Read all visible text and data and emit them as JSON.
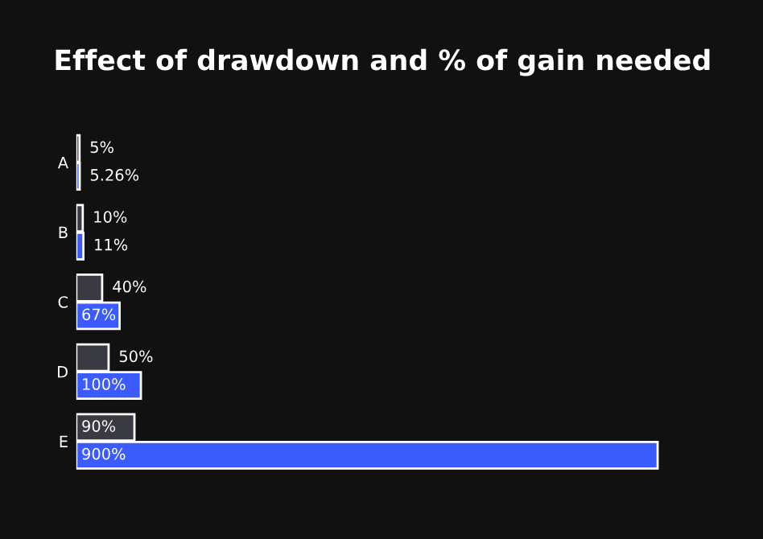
{
  "chart_data": {
    "type": "bar",
    "orientation": "horizontal",
    "title": "Effect of drawdown and % of gain needed",
    "categories": [
      "A",
      "B",
      "C",
      "D",
      "E"
    ],
    "series": [
      {
        "color": "#3a3a42",
        "values": [
          5,
          10,
          40,
          50,
          90
        ],
        "value_labels": [
          "5%",
          "10%",
          "40%",
          "50%",
          "90%"
        ]
      },
      {
        "color": "#3b5bfd",
        "values": [
          5.26,
          11,
          67,
          100,
          900
        ],
        "value_labels": [
          "5.26%",
          "11%",
          "67%",
          "100%",
          "900%"
        ]
      }
    ],
    "tick_labels": "y",
    "grid": false,
    "legend": false
  }
}
